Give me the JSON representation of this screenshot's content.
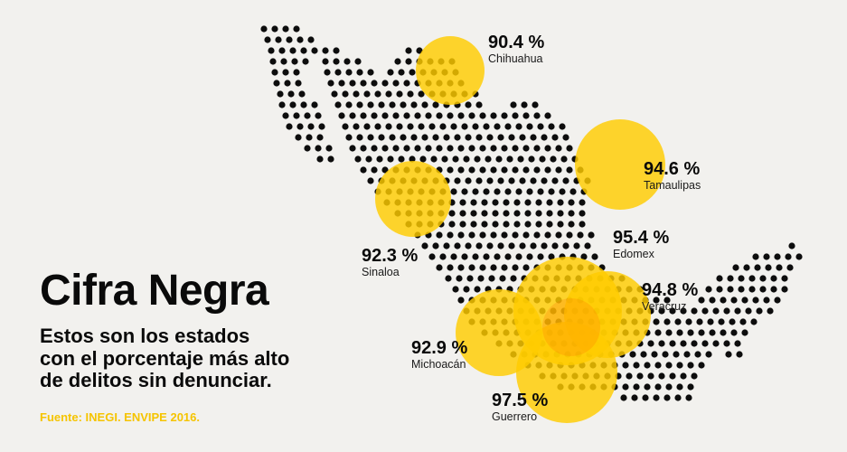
{
  "title": "Cifra Negra",
  "subtitle": [
    "Estos son los estados",
    "con el porcentaje más alto",
    "de delitos sin denunciar."
  ],
  "source": "Fuente: INEGI. ENVIPE 2016.",
  "colors": {
    "background": "#f2f1ee",
    "dots": "#0d0d0d",
    "bubble": "#ffcc00",
    "overlap": "#ff6a00",
    "source_text": "#f5c400"
  },
  "states": [
    {
      "id": "chihuahua",
      "name": "Chihuahua",
      "percentage": 90.4,
      "label": "90.4 %"
    },
    {
      "id": "tamaulipas",
      "name": "Tamaulipas",
      "percentage": 94.6,
      "label": "94.6 %"
    },
    {
      "id": "sinaloa",
      "name": "Sinaloa",
      "percentage": 92.3,
      "label": "92.3 %"
    },
    {
      "id": "edomex",
      "name": "Edomex",
      "percentage": 95.4,
      "label": "95.4 %"
    },
    {
      "id": "veracruz",
      "name": "Veracruz",
      "percentage": 94.8,
      "label": "94.8 %"
    },
    {
      "id": "michoacan",
      "name": "Michoacán",
      "percentage": 92.9,
      "label": "92.9 %"
    },
    {
      "id": "guerrero",
      "name": "Guerrero",
      "percentage": 97.5,
      "label": "97.5 %"
    }
  ]
}
